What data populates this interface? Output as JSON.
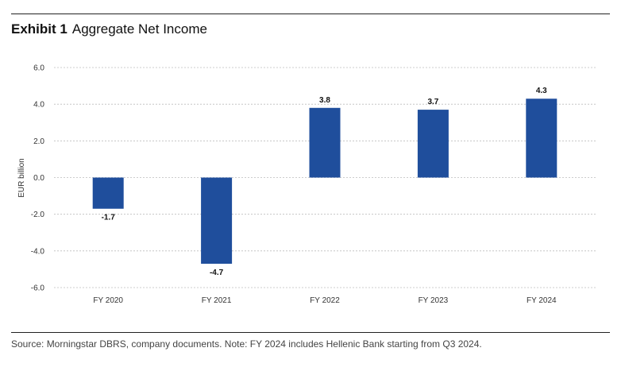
{
  "exhibit": {
    "label": "Exhibit 1",
    "title": "Aggregate Net Income"
  },
  "chart_data": {
    "type": "bar",
    "title": "Aggregate Net Income",
    "xlabel": "",
    "ylabel": "EUR billion",
    "ylim": [
      -6.0,
      6.0
    ],
    "yticks": [
      6.0,
      4.0,
      2.0,
      0.0,
      -2.0,
      -4.0,
      -6.0
    ],
    "ytick_labels": [
      "6.0",
      "4.0",
      "2.0",
      "0.0",
      "-2.0",
      "-4.0",
      "-6.0"
    ],
    "categories": [
      "FY 2020",
      "FY 2021",
      "FY 2022",
      "FY 2023",
      "FY 2024"
    ],
    "values": [
      -1.7,
      -4.7,
      3.8,
      3.7,
      4.3
    ],
    "data_labels": [
      "-1.7",
      "-4.7",
      "3.8",
      "3.7",
      "4.3"
    ],
    "grid": true,
    "bar_color": "#1f4e9c"
  },
  "footer": {
    "source": "Source: Morningstar DBRS, company documents. Note: FY 2024 includes Hellenic Bank starting from Q3 2024."
  }
}
